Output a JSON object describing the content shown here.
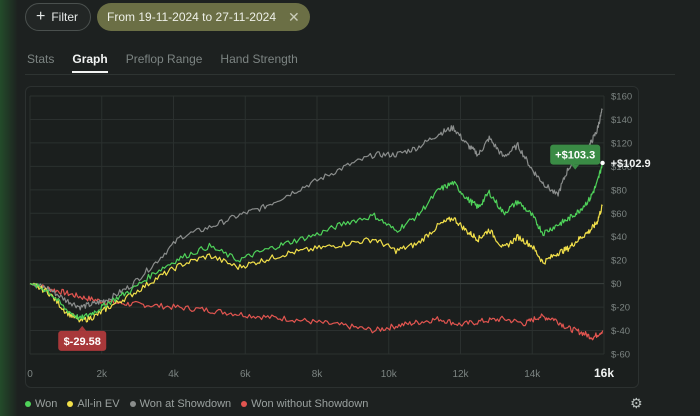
{
  "toolbar": {
    "filter_label": "Filter",
    "date_range_label": "From 19-11-2024 to 27-11-2024"
  },
  "tabs": [
    {
      "label": "Stats",
      "active": false
    },
    {
      "label": "Graph",
      "active": true
    },
    {
      "label": "Preflop Range",
      "active": false
    },
    {
      "label": "Hand Strength",
      "active": false
    }
  ],
  "colors": {
    "won": "#4fd35a",
    "allin_ev": "#f2e04a",
    "won_at_showdown": "#8a8d8c",
    "won_without_showdown": "#e25550",
    "callout_green": "#3a8b45",
    "callout_red": "#a8383a"
  },
  "icons": {
    "filter": "plus-icon",
    "clear": "close-icon",
    "settings": "gear-icon"
  },
  "chart_data": {
    "type": "line",
    "xlabel": "",
    "ylabel": "",
    "xlim": [
      0,
      16000
    ],
    "ylim": [
      -60,
      160
    ],
    "x_ticks": [
      {
        "value": 0,
        "label": "0"
      },
      {
        "value": 2000,
        "label": "2k"
      },
      {
        "value": 4000,
        "label": "4k"
      },
      {
        "value": 6000,
        "label": "6k"
      },
      {
        "value": 8000,
        "label": "8k"
      },
      {
        "value": 10000,
        "label": "10k"
      },
      {
        "value": 12000,
        "label": "12k"
      },
      {
        "value": 14000,
        "label": "14k"
      },
      {
        "value": 16000,
        "label": "16k"
      }
    ],
    "y_ticks": [
      {
        "value": 160,
        "label": "$160"
      },
      {
        "value": 140,
        "label": "$140"
      },
      {
        "value": 120,
        "label": "$120"
      },
      {
        "value": 100,
        "label": "$100"
      },
      {
        "value": 80,
        "label": "$80"
      },
      {
        "value": 60,
        "label": "$60"
      },
      {
        "value": 40,
        "label": "$40"
      },
      {
        "value": 20,
        "label": "$20"
      },
      {
        "value": 0,
        "label": "$0"
      },
      {
        "value": -20,
        "label": "$-20"
      },
      {
        "value": -40,
        "label": "$-40"
      },
      {
        "value": -60,
        "label": "$-60"
      }
    ],
    "grid": true,
    "series": [
      {
        "name": "Won at Showdown",
        "color": "#8a8d8c",
        "x": [
          0,
          500,
          1000,
          1400,
          1800,
          2200,
          2800,
          3500,
          4200,
          5000,
          5800,
          6500,
          7200,
          8000,
          8800,
          9600,
          10200,
          10800,
          11400,
          11800,
          12200,
          12500,
          12800,
          13200,
          13600,
          14000,
          14300,
          14700,
          15000,
          15300,
          15600,
          15800,
          15950
        ],
        "y": [
          0,
          -4,
          -14,
          -20,
          -17,
          -13,
          -2,
          18,
          40,
          48,
          58,
          65,
          76,
          88,
          100,
          110,
          110,
          116,
          128,
          133,
          118,
          110,
          124,
          108,
          118,
          97,
          86,
          75,
          98,
          108,
          118,
          130,
          148
        ]
      },
      {
        "name": "Won",
        "color": "#4fd35a",
        "x": [
          0,
          500,
          1000,
          1400,
          1800,
          2200,
          2800,
          3500,
          4200,
          5000,
          5800,
          6500,
          7200,
          8000,
          8800,
          9600,
          10200,
          10800,
          11400,
          11800,
          12200,
          12500,
          12800,
          13200,
          13600,
          14000,
          14300,
          14700,
          15000,
          15300,
          15600,
          15800,
          15960
        ],
        "y": [
          0,
          -6,
          -22,
          -30,
          -24,
          -16,
          -6,
          10,
          22,
          32,
          20,
          28,
          35,
          42,
          52,
          58,
          45,
          58,
          80,
          86,
          72,
          65,
          78,
          60,
          70,
          58,
          43,
          50,
          55,
          62,
          72,
          85,
          103
        ]
      },
      {
        "name": "All-in EV",
        "color": "#f2e04a",
        "x": [
          0,
          500,
          1000,
          1400,
          1800,
          2200,
          2800,
          3500,
          4200,
          5000,
          5800,
          6500,
          7200,
          8000,
          8800,
          9600,
          10200,
          10800,
          11400,
          11800,
          12200,
          12500,
          12800,
          13200,
          13600,
          14000,
          14300,
          14700,
          15000,
          15300,
          15600,
          15800,
          15950
        ],
        "y": [
          0,
          -7,
          -24,
          -32,
          -28,
          -20,
          -10,
          4,
          16,
          24,
          14,
          20,
          26,
          30,
          34,
          38,
          28,
          34,
          50,
          56,
          44,
          38,
          46,
          30,
          40,
          32,
          18,
          26,
          30,
          38,
          45,
          52,
          66
        ]
      },
      {
        "name": "Won without Showdown",
        "color": "#e25550",
        "x": [
          0,
          500,
          1000,
          1500,
          2000,
          2600,
          3200,
          4000,
          4800,
          5600,
          6400,
          7200,
          8000,
          8800,
          9600,
          10200,
          10800,
          11400,
          12000,
          12600,
          13200,
          13800,
          14200,
          14600,
          15000,
          15400,
          15700,
          15960
        ],
        "y": [
          0,
          -4,
          -8,
          -12,
          -15,
          -17,
          -18,
          -20,
          -22,
          -25,
          -28,
          -30,
          -33,
          -36,
          -40,
          -36,
          -33,
          -30,
          -35,
          -32,
          -30,
          -34,
          -28,
          -30,
          -38,
          -42,
          -46,
          -40
        ]
      }
    ],
    "callouts": [
      {
        "label": "+$103.3",
        "x": 15950,
        "y": 110,
        "style": "green-box"
      },
      {
        "label": "+$102.9",
        "x": 15960,
        "y": 102.9,
        "style": "plain"
      },
      {
        "label": "$-29.58",
        "x": 1400,
        "y": -30,
        "style": "red-box"
      }
    ]
  },
  "legend": [
    {
      "label": "Won",
      "color": "#4fd35a"
    },
    {
      "label": "All-in EV",
      "color": "#f2e04a"
    },
    {
      "label": "Won at Showdown",
      "color": "#8a8d8c"
    },
    {
      "label": "Won without Showdown",
      "color": "#e25550"
    }
  ]
}
